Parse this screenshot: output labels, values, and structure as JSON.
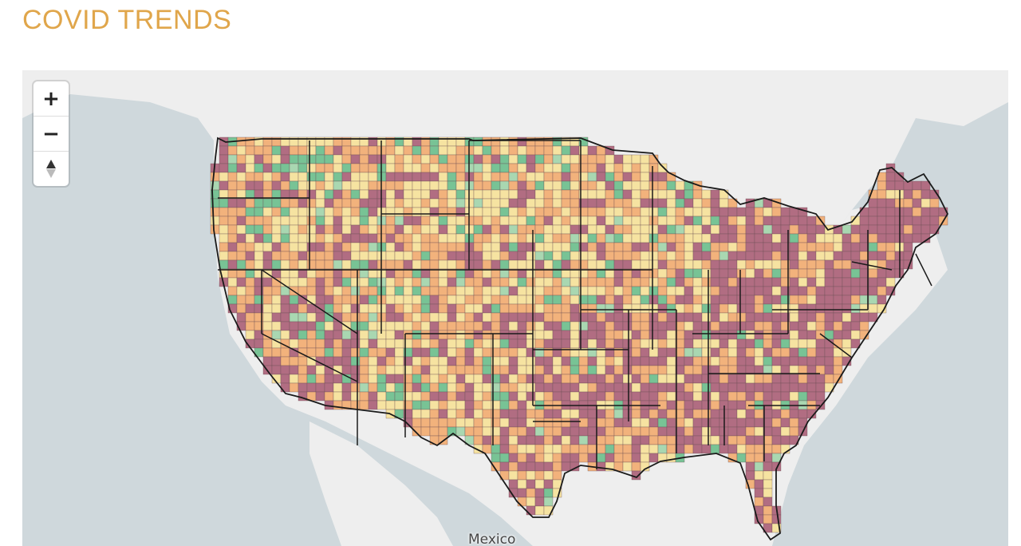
{
  "page": {
    "title": "COVID TRENDS",
    "title_color": "#E0A64B"
  },
  "map": {
    "zoom_in_label": "+",
    "zoom_out_label": "−",
    "compass_icon": "compass-icon",
    "place_labels": [
      {
        "id": "mexico",
        "text": "Mexico"
      }
    ],
    "palette": {
      "water": "#CFD8DC",
      "land": "#EEEEEE",
      "state_border": "#1A1A1A",
      "category_colors": [
        "#B16D82",
        "#F2B27C",
        "#F6E3A1",
        "#78C395",
        "#A9D7B1"
      ]
    }
  }
}
